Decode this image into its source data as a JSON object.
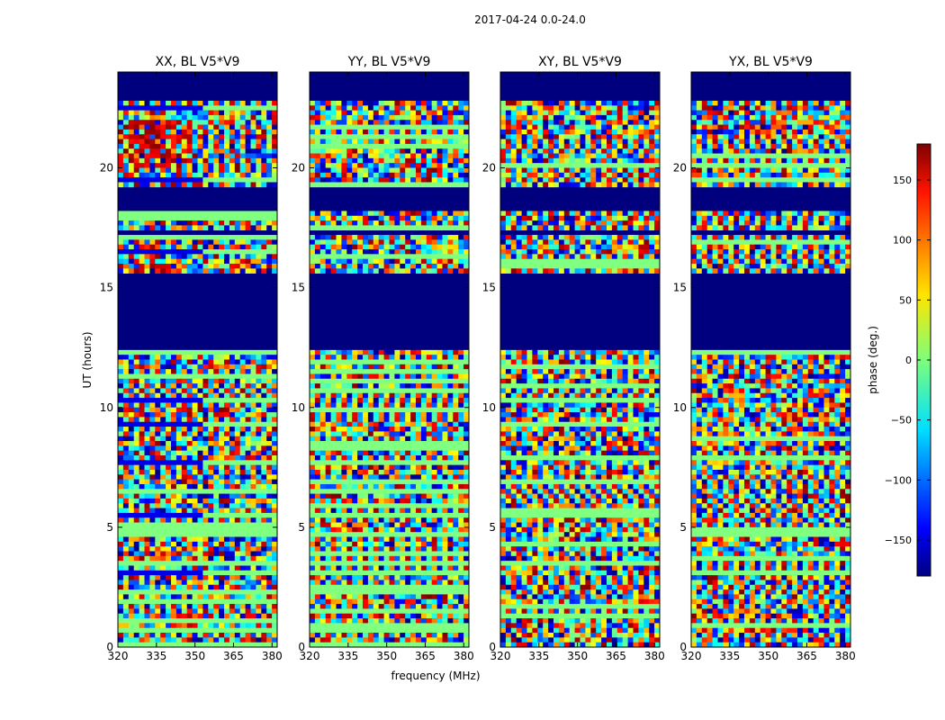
{
  "chart_data": {
    "type": "heatmap",
    "suptitle": "2017-04-24 0.0-24.0",
    "xlabel": "frequency (MHz)",
    "ylabel": "UT (hours)",
    "xlim": [
      320,
      382
    ],
    "ylim": [
      0,
      24
    ],
    "xticks": [
      320,
      335,
      350,
      365,
      380
    ],
    "yticks": [
      0,
      5,
      10,
      15,
      20
    ],
    "panels": [
      {
        "title": "XX, BL V5*V9",
        "pol": "XX"
      },
      {
        "title": "YY, BL V5*V9",
        "pol": "YY"
      },
      {
        "title": "XY, BL V5*V9",
        "pol": "XY"
      },
      {
        "title": "YX, BL V5*V9",
        "pol": "YX"
      }
    ],
    "flagged_ut_ranges": [
      [
        22.8,
        24.0
      ],
      [
        18.2,
        19.2
      ],
      [
        17.2,
        17.4
      ],
      [
        12.5,
        15.7
      ]
    ],
    "colorbar": {
      "label": "phase (deg.)",
      "range": [
        -180,
        180
      ],
      "ticks": [
        150,
        100,
        50,
        0,
        -50,
        -100,
        -150
      ],
      "tick_labels": [
        "150",
        "100",
        "50",
        "0",
        "−50",
        "−100",
        "−150"
      ],
      "colormap": "jet"
    }
  }
}
